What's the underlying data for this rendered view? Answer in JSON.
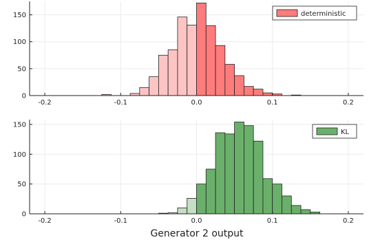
{
  "xlabel": "Generator 2 output",
  "chart_data": [
    {
      "type": "bar",
      "title": "",
      "xlabel": "",
      "ylabel": "",
      "xlim": [
        -0.22,
        0.22
      ],
      "ylim": [
        0,
        175
      ],
      "xticks": [
        -0.2,
        -0.1,
        0.0,
        0.1,
        0.2
      ],
      "xtick_labels": [
        "-0.2",
        "-0.1",
        "0.0",
        "0.1",
        "0.2"
      ],
      "yticks": [
        0,
        50,
        100,
        150
      ],
      "ytick_labels": [
        "0",
        "50",
        "100",
        "150"
      ],
      "grid": true,
      "legend": "top-right",
      "bin_width": 0.0125,
      "series": [
        {
          "name": "deterministic",
          "color": "#ff7c7c",
          "color_negative": "#fdc4c4",
          "bin_left_edges": [
            -0.125,
            -0.1125,
            -0.1,
            -0.0875,
            -0.075,
            -0.0625,
            -0.05,
            -0.0375,
            -0.025,
            -0.0125,
            0.0,
            0.0125,
            0.025,
            0.0375,
            0.05,
            0.0625,
            0.075,
            0.0875,
            0.1,
            0.1125,
            0.125
          ],
          "values": [
            2,
            0,
            0,
            4,
            15,
            35,
            75,
            85,
            146,
            131,
            172,
            130,
            93,
            58,
            37,
            17,
            12,
            5,
            3,
            0,
            1
          ]
        }
      ]
    },
    {
      "type": "bar",
      "title": "",
      "xlabel": "Generator 2 output",
      "ylabel": "",
      "xlim": [
        -0.22,
        0.22
      ],
      "ylim": [
        0,
        158
      ],
      "xticks": [
        -0.2,
        -0.1,
        0.0,
        0.1,
        0.2
      ],
      "xtick_labels": [
        "-0.2",
        "-0.1",
        "0.0",
        "0.1",
        "0.2"
      ],
      "yticks": [
        0,
        50,
        100,
        150
      ],
      "ytick_labels": [
        "0",
        "50",
        "100",
        "150"
      ],
      "grid": true,
      "legend": "top-right",
      "bin_width": 0.0125,
      "series": [
        {
          "name": "KL",
          "color": "#6ab06a",
          "color_negative": "#c4dfc4",
          "bin_left_edges": [
            -0.05,
            -0.0375,
            -0.025,
            -0.0125,
            0.0,
            0.0125,
            0.025,
            0.0375,
            0.05,
            0.0625,
            0.075,
            0.0875,
            0.1,
            0.1125,
            0.125,
            0.1375,
            0.15
          ],
          "values": [
            1,
            2,
            10,
            26,
            50,
            75,
            136,
            134,
            154,
            148,
            122,
            59,
            50,
            30,
            14,
            7,
            3
          ]
        }
      ]
    }
  ]
}
